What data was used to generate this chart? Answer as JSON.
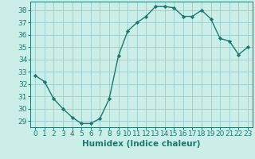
{
  "x": [
    0,
    1,
    2,
    3,
    4,
    5,
    6,
    7,
    8,
    9,
    10,
    11,
    12,
    13,
    14,
    15,
    16,
    17,
    18,
    19,
    20,
    21,
    22,
    23
  ],
  "y": [
    32.7,
    32.2,
    30.8,
    30.0,
    29.3,
    28.8,
    28.8,
    29.2,
    30.8,
    34.3,
    36.3,
    37.0,
    37.5,
    38.3,
    38.3,
    38.2,
    37.5,
    37.5,
    38.0,
    37.3,
    35.7,
    35.5,
    34.4,
    35.0
  ],
  "ylim": [
    28.5,
    38.7
  ],
  "yticks": [
    29,
    30,
    31,
    32,
    33,
    34,
    35,
    36,
    37,
    38
  ],
  "xlabel": "Humidex (Indice chaleur)",
  "line_color": "#1a7a6e",
  "marker": "D",
  "marker_size": 2.2,
  "bg_color": "#cceee8",
  "grid_color": "#99cccc",
  "tick_label_fontsize": 6.5,
  "xlabel_fontsize": 7.5
}
